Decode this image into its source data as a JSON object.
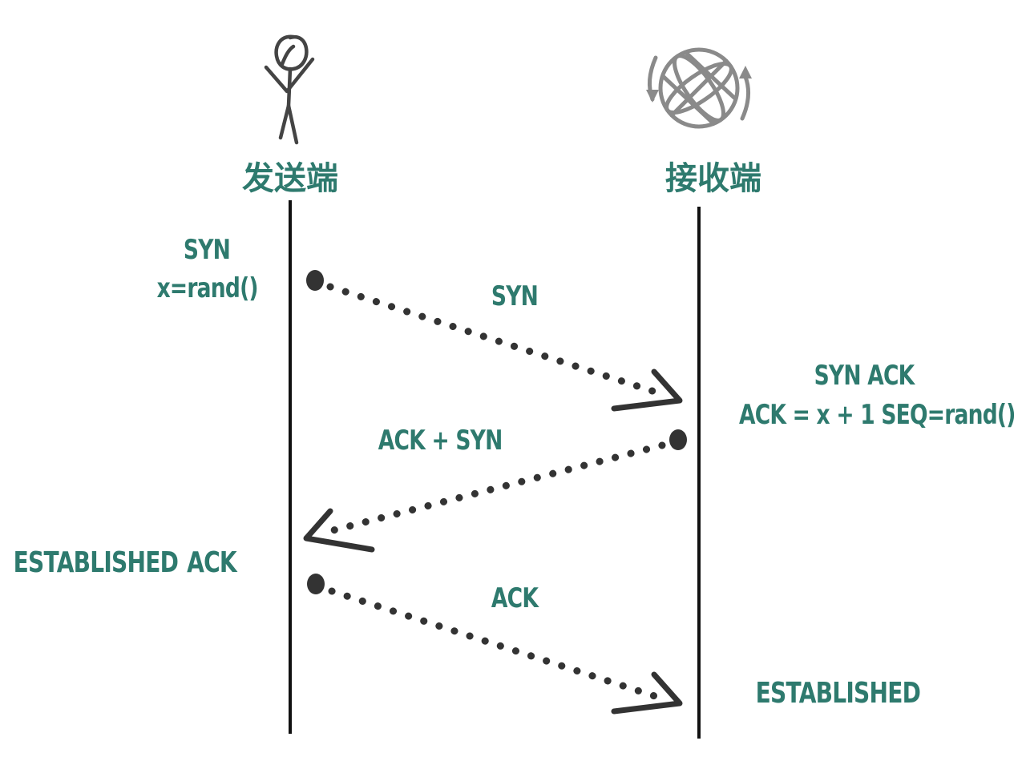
{
  "colors": {
    "label": "#2e7a6e",
    "line": "#111111",
    "arrow": "#333333",
    "icon": "#444444",
    "globe": "#8a8a8a"
  },
  "icons": {
    "sender": "stick-figure-icon",
    "receiver": "globe-sync-icon"
  },
  "sender": {
    "title": "发送端",
    "step1_line1": "SYN",
    "step1_line2": "x=rand()",
    "established": "ESTABLISHED",
    "step3_label": "ACK"
  },
  "receiver": {
    "title": "接收端",
    "step2_line1": "SYN ACK",
    "step2_line2": "ACK = x + 1 SEQ=rand()",
    "established": "ESTABLISHED"
  },
  "messages": {
    "syn": "SYN",
    "ack_syn": "ACK + SYN",
    "ack": "ACK"
  }
}
